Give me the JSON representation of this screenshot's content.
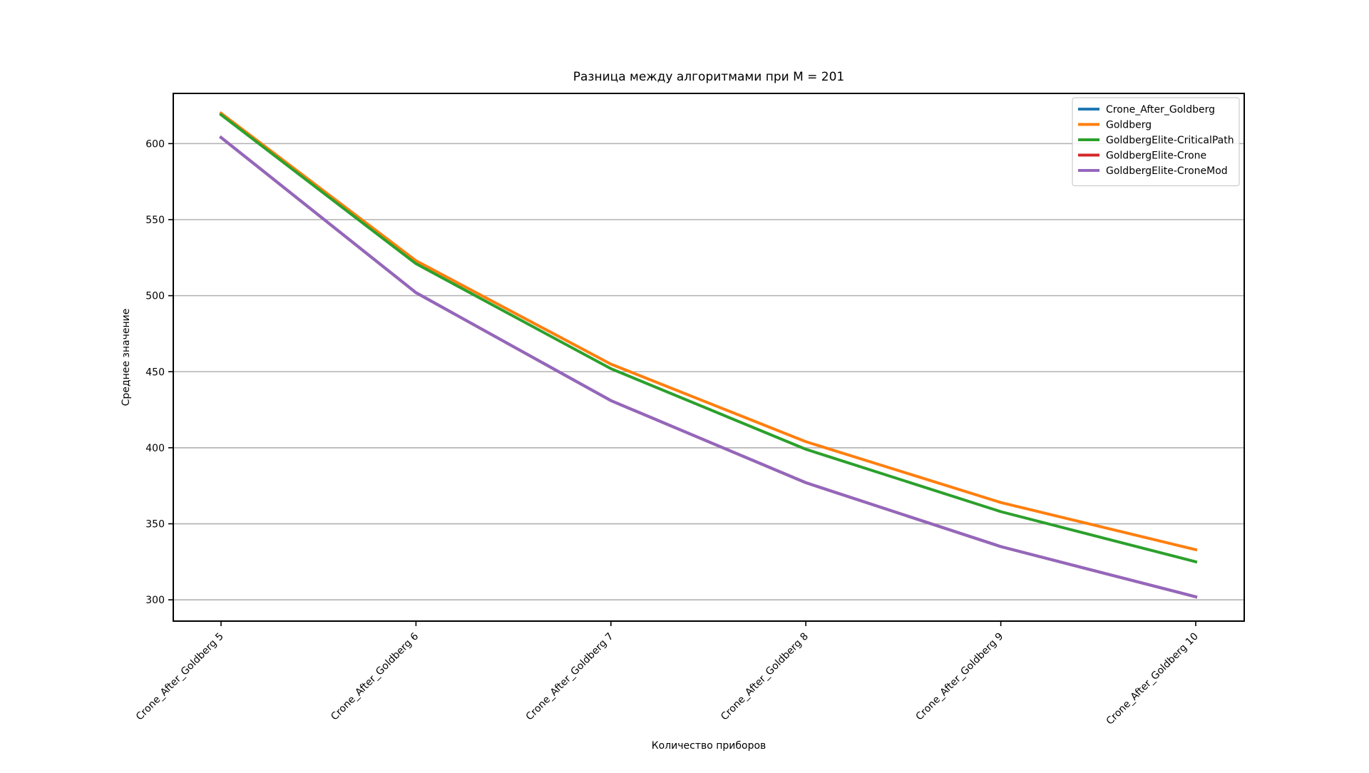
{
  "chart_data": {
    "type": "line",
    "title": "Разница между алгоритмами при M = 201",
    "xlabel": "Количество приборов",
    "ylabel": "Среднее значение",
    "categories": [
      "Crone_After_Goldberg 5",
      "Crone_After_Goldberg 6",
      "Crone_After_Goldberg 7",
      "Crone_After_Goldberg 8",
      "Crone_After_Goldberg 9",
      "Crone_After_Goldberg 10"
    ],
    "ylim": [
      286,
      633
    ],
    "yticks": [
      300,
      350,
      400,
      450,
      500,
      550,
      600
    ],
    "grid": "horizontal",
    "legend_position": "top-right",
    "series": [
      {
        "name": "Crone_After_Goldberg",
        "color": "#1f77b4",
        "values": [
          604,
          502,
          431,
          377,
          335,
          302
        ]
      },
      {
        "name": "Goldberg",
        "color": "#ff7f0e",
        "values": [
          620,
          523,
          455,
          404,
          364,
          333
        ]
      },
      {
        "name": "GoldbergElite-CriticalPath",
        "color": "#2ca02c",
        "values": [
          619,
          521,
          452,
          399,
          358,
          325
        ]
      },
      {
        "name": "GoldbergElite-Crone",
        "color": "#d62728",
        "values": [
          604,
          502,
          431,
          377,
          335,
          302
        ]
      },
      {
        "name": "GoldbergElite-CroneMod",
        "color": "#9467bd",
        "values": [
          604,
          502,
          431,
          377,
          335,
          302
        ]
      }
    ]
  }
}
